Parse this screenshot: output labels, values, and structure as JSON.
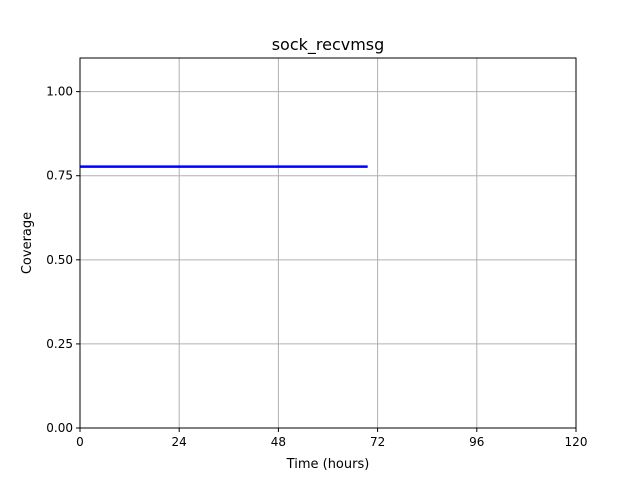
{
  "chart_data": {
    "type": "line",
    "title": "sock_recvmsg",
    "xlabel": "Time (hours)",
    "ylabel": "Coverage",
    "xlim": [
      0,
      120
    ],
    "ylim": [
      0,
      1.1
    ],
    "xticks": [
      0,
      24,
      48,
      72,
      96,
      120
    ],
    "xtick_labels": [
      "0",
      "24",
      "48",
      "72",
      "96",
      "120"
    ],
    "yticks": [
      0,
      0.25,
      0.5,
      0.75,
      1.0
    ],
    "ytick_labels": [
      "0.00",
      "0.25",
      "0.50",
      "0.75",
      "1.00"
    ],
    "grid": true,
    "legend": "none",
    "series": [
      {
        "color": "#0000ff",
        "x": [
          0,
          69.6
        ],
        "y": [
          0.777,
          0.777
        ]
      }
    ]
  }
}
